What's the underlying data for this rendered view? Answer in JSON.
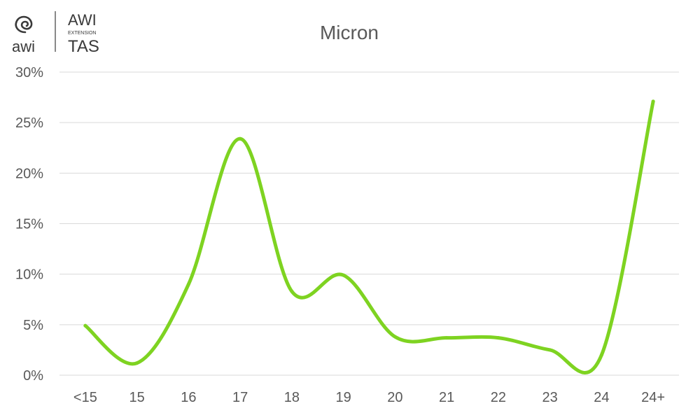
{
  "brand": {
    "logo_left_text": "awi",
    "logo_right_top": "AWI",
    "logo_right_middle": "EXTENSION",
    "logo_right_bottom": "TAS"
  },
  "chart_data": {
    "type": "line",
    "title": "Micron",
    "xlabel": "",
    "ylabel": "",
    "categories": [
      "<15",
      "15",
      "16",
      "17",
      "18",
      "19",
      "20",
      "21",
      "22",
      "23",
      "24",
      "24+"
    ],
    "series": [
      {
        "values": [
          4.9,
          1.2,
          9.0,
          23.4,
          8.3,
          9.9,
          3.8,
          3.7,
          3.7,
          2.5,
          2.0,
          27.1
        ]
      }
    ],
    "ylim": [
      0,
      30
    ],
    "yticks": [
      0,
      5,
      10,
      15,
      20,
      25,
      30
    ],
    "ytick_labels": [
      "0%",
      "5%",
      "10%",
      "15%",
      "20%",
      "25%",
      "30%"
    ],
    "grid": true,
    "legend": "none",
    "colors": {
      "line": "#7ED321",
      "grid": "#d9d9d9",
      "text": "#595959"
    }
  }
}
